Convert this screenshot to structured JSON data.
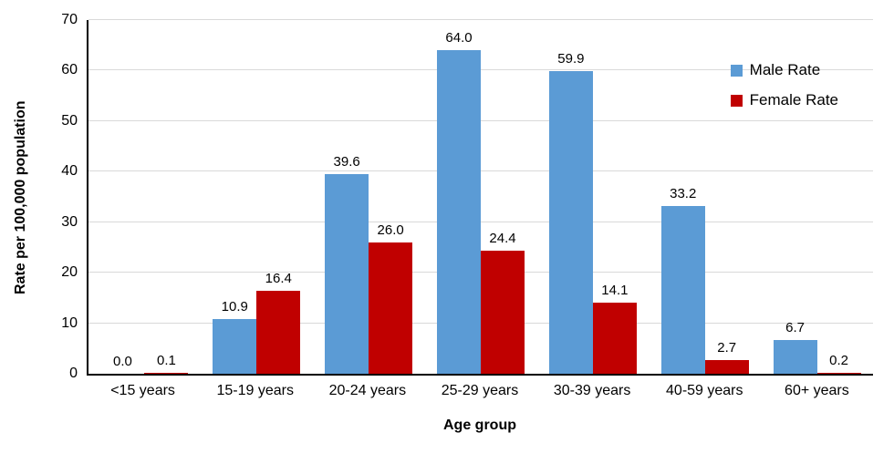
{
  "chart_data": {
    "type": "bar",
    "title": "",
    "xlabel": "Age group",
    "ylabel": "Rate per 100,000 population",
    "ylim": [
      0,
      70
    ],
    "yticks": [
      0,
      10,
      20,
      30,
      40,
      50,
      60,
      70
    ],
    "grid": true,
    "gridline_color": "#D9D9D9",
    "axis_color": "#000000",
    "legend_position": "top-right-inside",
    "categories": [
      "<15 years",
      "15-19 years",
      "20-24 years",
      "25-29 years",
      "30-39 years",
      "40-59 years",
      "60+ years"
    ],
    "series": [
      {
        "name": "Male Rate",
        "color": "#5B9BD5",
        "values": [
          0.0,
          10.9,
          39.6,
          64.0,
          59.9,
          33.2,
          6.7
        ],
        "labels": [
          "0.0",
          "10.9",
          "39.6",
          "64.0",
          "59.9",
          "33.2",
          "6.7"
        ]
      },
      {
        "name": "Female Rate",
        "color": "#C00000",
        "values": [
          0.1,
          16.4,
          26.0,
          24.4,
          14.1,
          2.7,
          0.2
        ],
        "labels": [
          "0.1",
          "16.4",
          "26.0",
          "24.4",
          "14.1",
          "2.7",
          "0.2"
        ]
      }
    ]
  }
}
